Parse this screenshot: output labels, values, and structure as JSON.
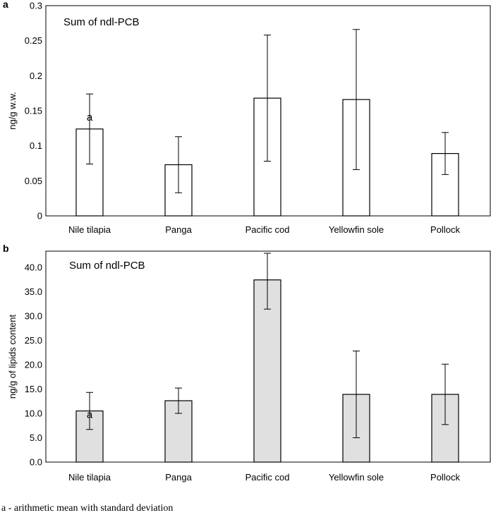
{
  "chart_data": [
    {
      "panel": "a",
      "type": "bar",
      "title": "Sum of ndl-PCB",
      "ylabel": "ng/g w.w.",
      "xlabel": "",
      "categories": [
        "Nile tilapia",
        "Panga",
        "Pacific cod",
        "Yellowfin sole",
        "Pollock"
      ],
      "values": [
        0.124,
        0.073,
        0.168,
        0.166,
        0.089
      ],
      "errors": [
        0.05,
        0.04,
        0.09,
        0.1,
        0.03
      ],
      "ylim": [
        0,
        0.3
      ],
      "yticks": [
        "0",
        "0.05",
        "0.1",
        "0.15",
        "0.2",
        "0.25",
        "0.3"
      ],
      "tick_values": [
        0,
        0.05,
        0.1,
        0.15,
        0.2,
        0.25,
        0.3
      ],
      "bar_color": "#ffffff",
      "annotation": {
        "text": "a",
        "category": "Nile tilapia"
      }
    },
    {
      "panel": "b",
      "type": "bar",
      "title": "Sum of ndl-PCB",
      "ylabel": "ng/g of lipids content",
      "xlabel": "",
      "categories": [
        "Nile tilapia",
        "Panga",
        "Pacific cod",
        "Yellowfin sole",
        "Pollock"
      ],
      "values": [
        10.5,
        12.6,
        37.4,
        13.9,
        13.9
      ],
      "errors": [
        3.8,
        2.6,
        6.0,
        8.9,
        6.2
      ],
      "ylim": [
        0,
        43.3
      ],
      "yticks": [
        "0.0",
        "5.0",
        "10.0",
        "15.0",
        "20.0",
        "25.0",
        "30.0",
        "35.0",
        "40.0"
      ],
      "tick_values": [
        0,
        5,
        10,
        15,
        20,
        25,
        30,
        35,
        40
      ],
      "bar_color": "#e0e0e0",
      "annotation": {
        "text": "a",
        "category": "Nile tilapia"
      }
    }
  ],
  "footnote": "a - arithmetic mean with standard deviation",
  "colors": {
    "axis": "#000000",
    "frame": "#000000",
    "error_bar": "#000000"
  }
}
